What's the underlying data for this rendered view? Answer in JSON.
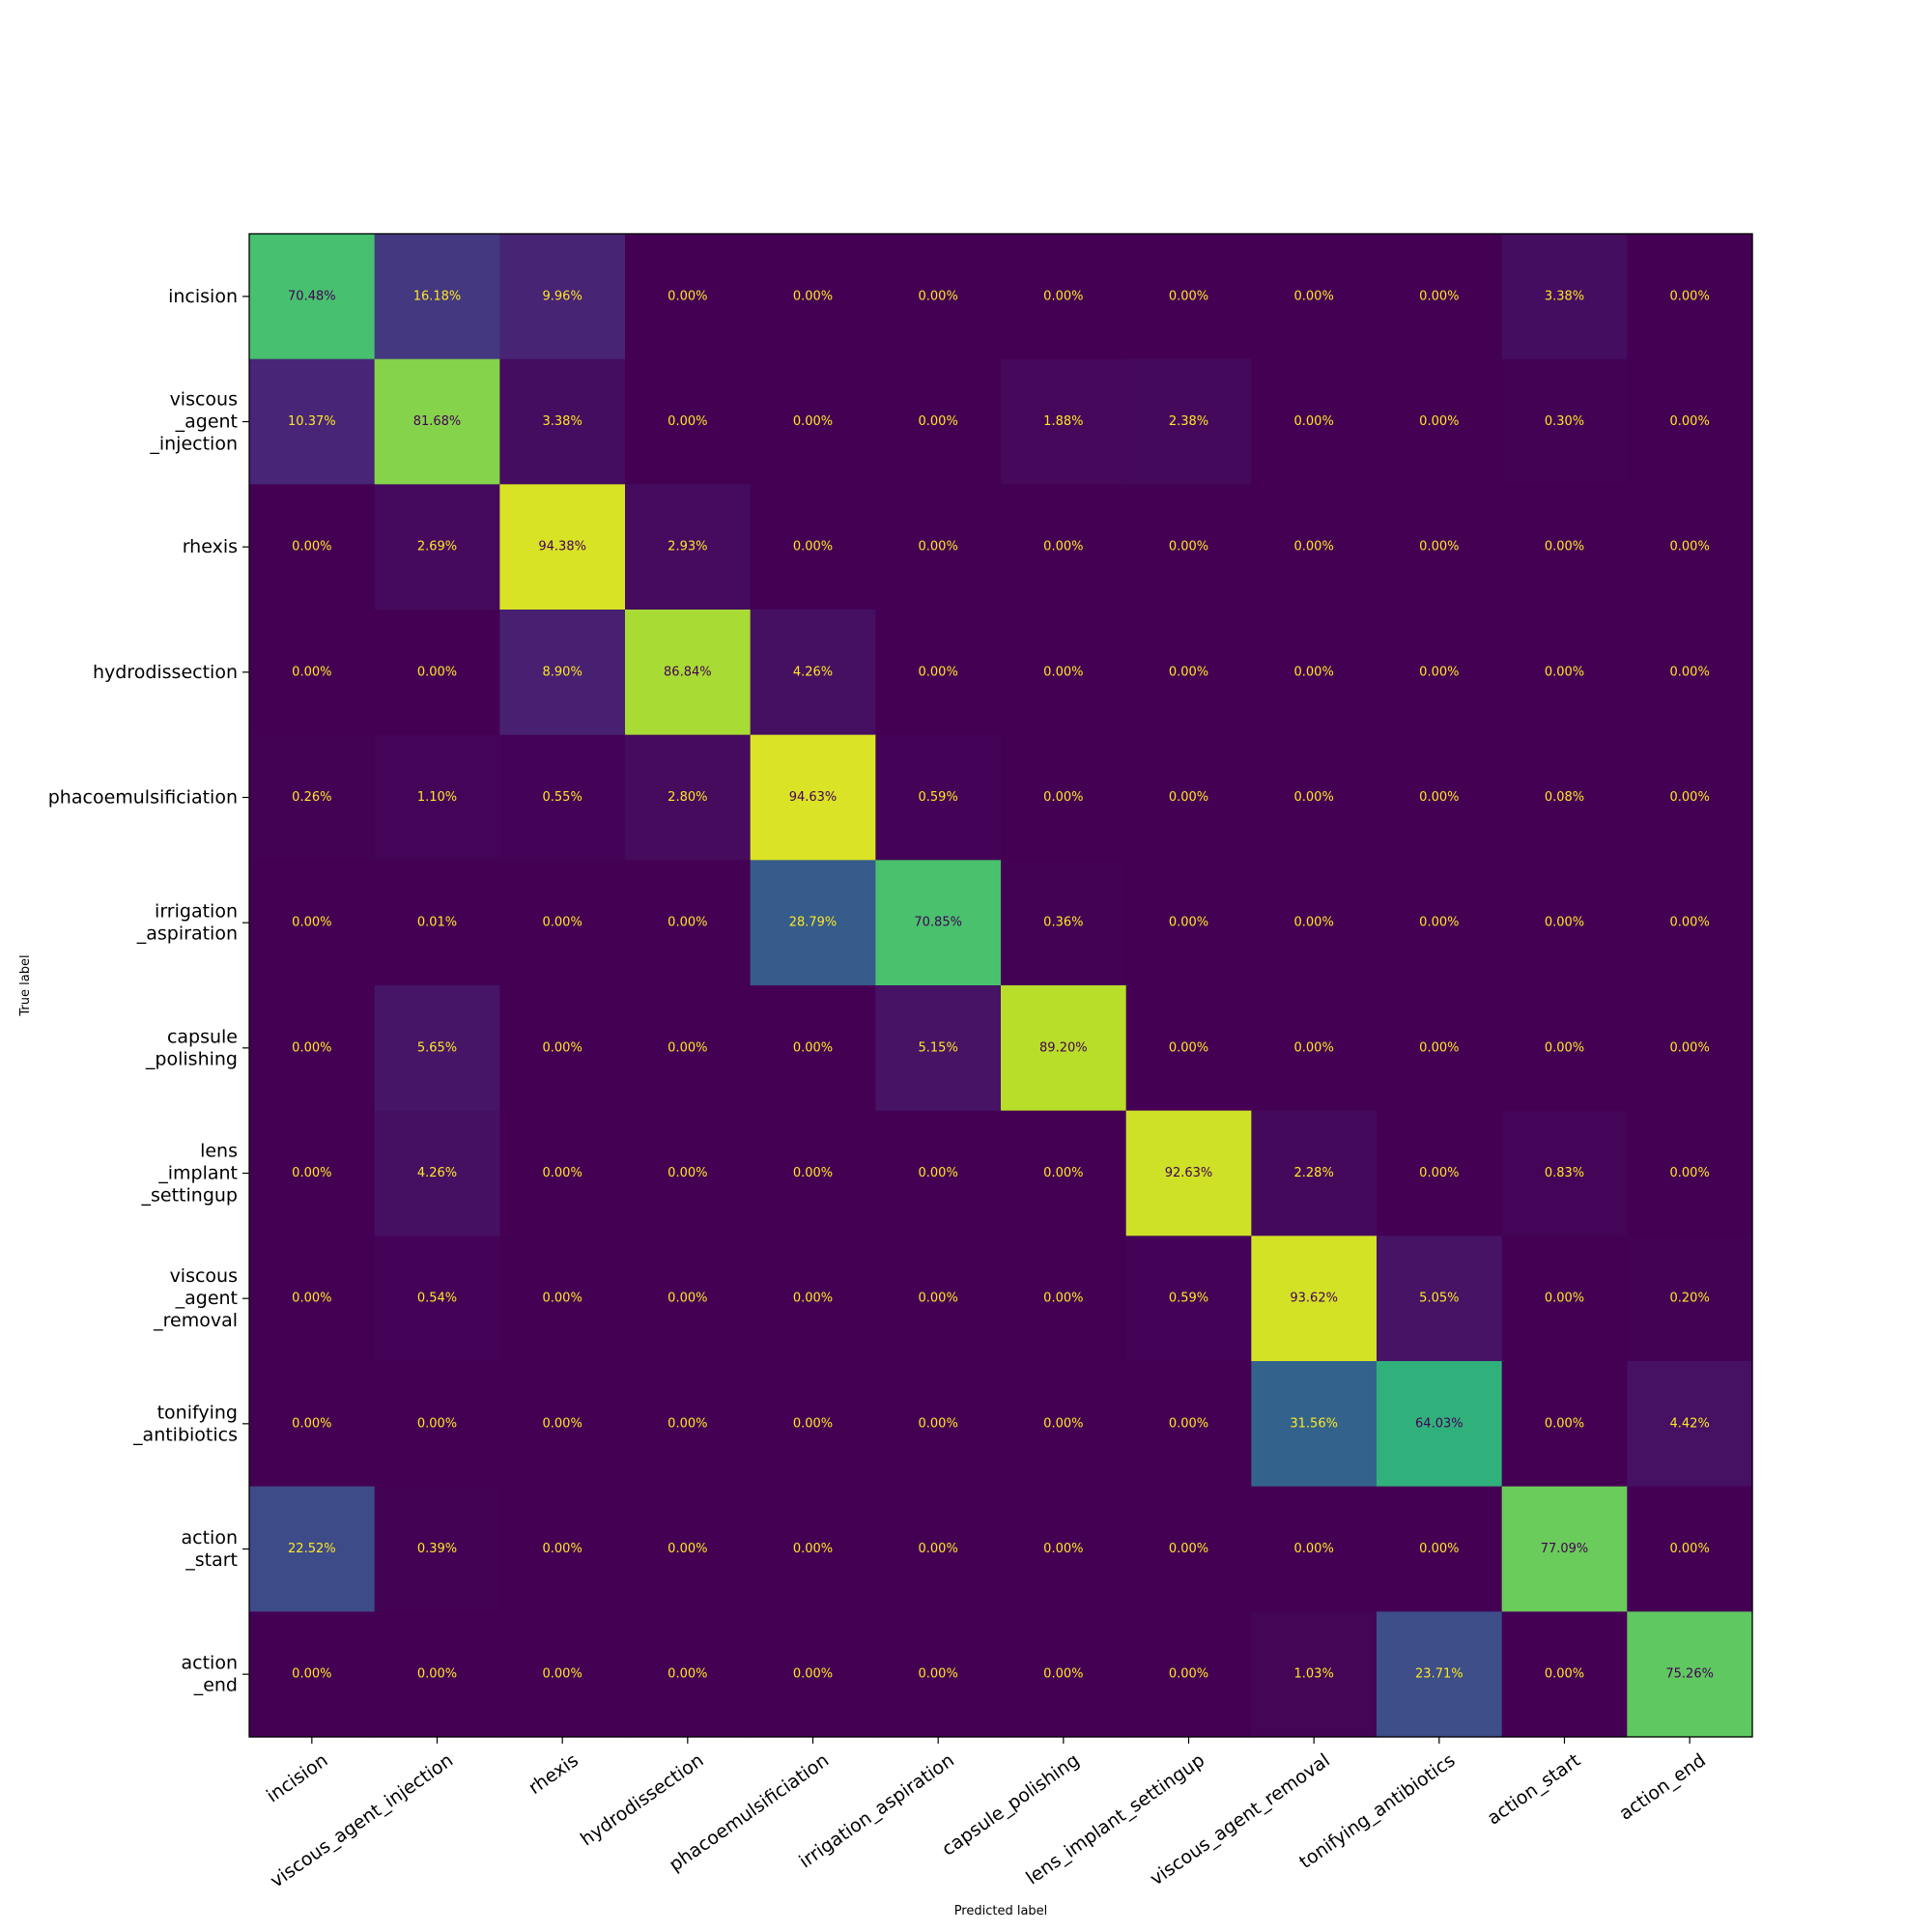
{
  "chart_data": {
    "type": "heatmap",
    "colormap": "viridis",
    "value_range": [
      0,
      100
    ],
    "xlabel": "Predicted label",
    "ylabel": "True label",
    "x_categories": [
      "incision",
      "viscous_agent_injection",
      "rhexis",
      "hydrodissection",
      "phacoemulsificiation",
      "irrigation_aspiration",
      "capsule_polishing",
      "lens_implant_settingup",
      "viscous_agent_removal",
      "tonifying_antibiotics",
      "action_start",
      "action_end"
    ],
    "y_categories": [
      [
        "incision"
      ],
      [
        "viscous",
        "_agent",
        "_injection"
      ],
      [
        "rhexis"
      ],
      [
        "hydrodissection"
      ],
      [
        "phacoemulsificiation"
      ],
      [
        "irrigation",
        "_aspiration"
      ],
      [
        "capsule",
        "_polishing"
      ],
      [
        "lens",
        "_implant",
        "_settingup"
      ],
      [
        "viscous",
        "_agent",
        "_removal"
      ],
      [
        "tonifying",
        "_antibiotics"
      ],
      [
        "action",
        "_start"
      ],
      [
        "action",
        "_end"
      ]
    ],
    "value_format": "percent_2dp",
    "values": [
      [
        70.48,
        16.18,
        9.96,
        0.0,
        0.0,
        0.0,
        0.0,
        0.0,
        0.0,
        0.0,
        3.38,
        0.0
      ],
      [
        10.37,
        81.68,
        3.38,
        0.0,
        0.0,
        0.0,
        1.88,
        2.38,
        0.0,
        0.0,
        0.3,
        0.0
      ],
      [
        0.0,
        2.69,
        94.38,
        2.93,
        0.0,
        0.0,
        0.0,
        0.0,
        0.0,
        0.0,
        0.0,
        0.0
      ],
      [
        0.0,
        0.0,
        8.9,
        86.84,
        4.26,
        0.0,
        0.0,
        0.0,
        0.0,
        0.0,
        0.0,
        0.0
      ],
      [
        0.26,
        1.1,
        0.55,
        2.8,
        94.63,
        0.59,
        0.0,
        0.0,
        0.0,
        0.0,
        0.08,
        0.0
      ],
      [
        0.0,
        0.01,
        0.0,
        0.0,
        28.79,
        70.85,
        0.36,
        0.0,
        0.0,
        0.0,
        0.0,
        0.0
      ],
      [
        0.0,
        5.65,
        0.0,
        0.0,
        0.0,
        5.15,
        89.2,
        0.0,
        0.0,
        0.0,
        0.0,
        0.0
      ],
      [
        0.0,
        4.26,
        0.0,
        0.0,
        0.0,
        0.0,
        0.0,
        92.63,
        2.28,
        0.0,
        0.83,
        0.0
      ],
      [
        0.0,
        0.54,
        0.0,
        0.0,
        0.0,
        0.0,
        0.0,
        0.59,
        93.62,
        5.05,
        0.0,
        0.2
      ],
      [
        0.0,
        0.0,
        0.0,
        0.0,
        0.0,
        0.0,
        0.0,
        0.0,
        31.56,
        64.03,
        0.0,
        4.42
      ],
      [
        22.52,
        0.39,
        0.0,
        0.0,
        0.0,
        0.0,
        0.0,
        0.0,
        0.0,
        0.0,
        77.09,
        0.0
      ],
      [
        0.0,
        0.0,
        0.0,
        0.0,
        0.0,
        0.0,
        0.0,
        0.0,
        1.03,
        23.71,
        0.0,
        75.26
      ]
    ],
    "grid": false,
    "legend": "none",
    "text_colors": {
      "on_dark": "#fde725",
      "on_light": "#440154"
    }
  }
}
